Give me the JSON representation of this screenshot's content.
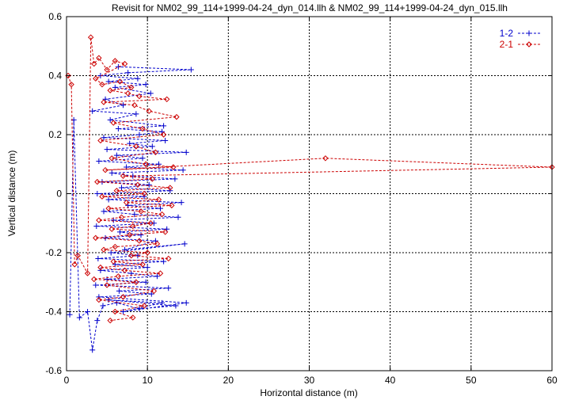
{
  "chart_data": {
    "type": "line",
    "title": "Revisit for NM02_99_114+1999-04-24_dyn_014.llh & NM02_99_114+1999-04-24_dyn_015.llh",
    "xlabel": "Horizontal distance (m)",
    "ylabel": "Vertical distance (m)",
    "xlim": [
      0,
      60
    ],
    "ylim": [
      -0.6,
      0.6
    ],
    "x_ticks": [
      "0",
      "10",
      "20",
      "30",
      "40",
      "50",
      "60"
    ],
    "y_ticks": [
      "-0.6",
      "-0.4",
      "-0.2",
      "0",
      "0.2",
      "0.4",
      "0.6"
    ],
    "grid": true,
    "legend_position": "top-right",
    "series": [
      {
        "name": "1-2",
        "color": "#0000cc",
        "marker": "plus",
        "line": "dashed",
        "points": [
          [
            0.4,
            -0.41
          ],
          [
            0.9,
            0.25
          ],
          [
            1.6,
            -0.42
          ],
          [
            2.6,
            -0.4
          ],
          [
            3.2,
            -0.53
          ],
          [
            3.8,
            -0.43
          ],
          [
            4.5,
            -0.38
          ],
          [
            6.2,
            -0.37
          ],
          [
            9.0,
            -0.39
          ],
          [
            13.5,
            -0.38
          ],
          [
            5.2,
            -0.36
          ],
          [
            11.8,
            -0.37
          ],
          [
            7.0,
            -0.4
          ],
          [
            14.8,
            -0.37
          ],
          [
            4.0,
            -0.35
          ],
          [
            10.5,
            -0.34
          ],
          [
            6.5,
            -0.33
          ],
          [
            12.6,
            -0.32
          ],
          [
            3.6,
            -0.31
          ],
          [
            9.8,
            -0.3
          ],
          [
            5.0,
            -0.29
          ],
          [
            11.2,
            -0.28
          ],
          [
            8.0,
            -0.27
          ],
          [
            4.2,
            -0.26
          ],
          [
            10.0,
            -0.25
          ],
          [
            6.0,
            -0.24
          ],
          [
            12.0,
            -0.23
          ],
          [
            3.9,
            -0.22
          ],
          [
            8.8,
            -0.21
          ],
          [
            5.5,
            -0.2
          ],
          [
            14.6,
            -0.17
          ],
          [
            7.2,
            -0.19
          ],
          [
            11.0,
            -0.16
          ],
          [
            4.8,
            -0.15
          ],
          [
            9.2,
            -0.14
          ],
          [
            6.6,
            -0.13
          ],
          [
            12.4,
            -0.12
          ],
          [
            3.7,
            -0.11
          ],
          [
            10.8,
            -0.1
          ],
          [
            5.8,
            -0.09
          ],
          [
            13.8,
            -0.08
          ],
          [
            8.4,
            -0.07
          ],
          [
            4.6,
            -0.06
          ],
          [
            11.6,
            -0.05
          ],
          [
            7.6,
            -0.04
          ],
          [
            14.2,
            -0.03
          ],
          [
            5.2,
            -0.02
          ],
          [
            9.6,
            -0.01
          ],
          [
            3.8,
            0.0
          ],
          [
            12.8,
            0.01
          ],
          [
            6.8,
            0.02
          ],
          [
            10.2,
            0.03
          ],
          [
            4.4,
            0.04
          ],
          [
            13.4,
            0.05
          ],
          [
            8.2,
            0.06
          ],
          [
            5.6,
            0.07
          ],
          [
            14.4,
            0.08
          ],
          [
            7.4,
            0.09
          ],
          [
            11.4,
            0.1
          ],
          [
            4.0,
            0.11
          ],
          [
            9.4,
            0.12
          ],
          [
            6.2,
            0.13
          ],
          [
            14.8,
            0.14
          ],
          [
            5.0,
            0.15
          ],
          [
            10.6,
            0.16
          ],
          [
            7.8,
            0.17
          ],
          [
            12.2,
            0.18
          ],
          [
            4.6,
            0.19
          ],
          [
            9.0,
            0.2
          ],
          [
            11.8,
            0.21
          ],
          [
            6.4,
            0.22
          ],
          [
            12.0,
            0.23
          ],
          [
            5.4,
            0.25
          ],
          [
            8.6,
            0.27
          ],
          [
            3.2,
            0.28
          ],
          [
            7.0,
            0.3
          ],
          [
            4.8,
            0.32
          ],
          [
            10.4,
            0.34
          ],
          [
            6.0,
            0.36
          ],
          [
            9.8,
            0.37
          ],
          [
            5.2,
            0.38
          ],
          [
            8.8,
            0.39
          ],
          [
            4.2,
            0.4
          ],
          [
            7.6,
            0.41
          ],
          [
            15.4,
            0.42
          ],
          [
            6.4,
            0.43
          ]
        ]
      },
      {
        "name": "2-1",
        "color": "#cc0000",
        "marker": "diamond",
        "line": "dashed",
        "points": [
          [
            0.2,
            0.4
          ],
          [
            0.6,
            0.37
          ],
          [
            1.0,
            -0.24
          ],
          [
            1.4,
            -0.21
          ],
          [
            2.6,
            -0.27
          ],
          [
            3.0,
            0.53
          ],
          [
            3.4,
            0.44
          ],
          [
            4.0,
            0.46
          ],
          [
            5.0,
            0.42
          ],
          [
            6.0,
            0.45
          ],
          [
            7.2,
            0.44
          ],
          [
            3.6,
            0.39
          ],
          [
            4.4,
            0.37
          ],
          [
            6.6,
            0.38
          ],
          [
            8.0,
            0.36
          ],
          [
            5.4,
            0.35
          ],
          [
            7.6,
            0.34
          ],
          [
            9.0,
            0.33
          ],
          [
            12.4,
            0.32
          ],
          [
            4.6,
            0.31
          ],
          [
            8.4,
            0.3
          ],
          [
            10.2,
            0.28
          ],
          [
            13.6,
            0.26
          ],
          [
            5.8,
            0.24
          ],
          [
            9.4,
            0.22
          ],
          [
            12.0,
            0.2
          ],
          [
            4.2,
            0.18
          ],
          [
            8.6,
            0.16
          ],
          [
            11.0,
            0.14
          ],
          [
            5.6,
            0.12
          ],
          [
            9.8,
            0.1
          ],
          [
            13.2,
            0.09
          ],
          [
            4.8,
            0.08
          ],
          [
            32.0,
            0.12
          ],
          [
            60.0,
            0.09
          ],
          [
            7.0,
            0.06
          ],
          [
            10.6,
            0.05
          ],
          [
            3.8,
            0.04
          ],
          [
            8.8,
            0.03
          ],
          [
            12.8,
            0.02
          ],
          [
            6.2,
            0.01
          ],
          [
            9.6,
            0.0
          ],
          [
            4.4,
            -0.01
          ],
          [
            11.4,
            -0.02
          ],
          [
            7.4,
            -0.03
          ],
          [
            13.0,
            -0.04
          ],
          [
            5.2,
            -0.05
          ],
          [
            9.2,
            -0.06
          ],
          [
            11.8,
            -0.07
          ],
          [
            6.8,
            -0.08
          ],
          [
            4.0,
            -0.09
          ],
          [
            10.4,
            -0.1
          ],
          [
            8.2,
            -0.11
          ],
          [
            5.6,
            -0.12
          ],
          [
            12.2,
            -0.13
          ],
          [
            7.8,
            -0.14
          ],
          [
            3.6,
            -0.15
          ],
          [
            9.0,
            -0.16
          ],
          [
            11.2,
            -0.17
          ],
          [
            6.0,
            -0.18
          ],
          [
            4.6,
            -0.19
          ],
          [
            10.0,
            -0.2
          ],
          [
            8.0,
            -0.21
          ],
          [
            12.6,
            -0.22
          ],
          [
            5.8,
            -0.23
          ],
          [
            9.4,
            -0.24
          ],
          [
            4.2,
            -0.25
          ],
          [
            7.2,
            -0.26
          ],
          [
            11.6,
            -0.27
          ],
          [
            6.4,
            -0.28
          ],
          [
            3.4,
            -0.29
          ],
          [
            8.6,
            -0.3
          ],
          [
            5.0,
            -0.31
          ],
          [
            10.8,
            -0.33
          ],
          [
            7.0,
            -0.35
          ],
          [
            4.0,
            -0.36
          ],
          [
            9.6,
            -0.38
          ],
          [
            6.0,
            -0.4
          ],
          [
            8.2,
            -0.42
          ],
          [
            5.4,
            -0.43
          ]
        ]
      }
    ]
  }
}
